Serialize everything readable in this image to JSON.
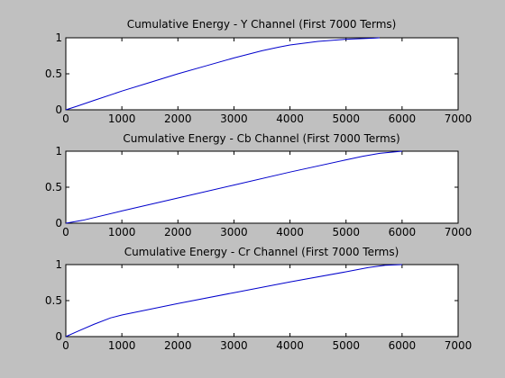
{
  "figure": {
    "background": "#c0c0c0",
    "axes_background": "#ffffff",
    "line_color": "#0000cc"
  },
  "chart_data": [
    {
      "type": "line",
      "title": "Cumulative Energy - Y Channel (First 7000 Terms)",
      "xlim": [
        0,
        7000
      ],
      "ylim": [
        0,
        1
      ],
      "xticks": [
        0,
        1000,
        2000,
        3000,
        4000,
        5000,
        6000,
        7000
      ],
      "yticks": [
        0,
        0.5,
        1
      ],
      "xlabel": "",
      "ylabel": "",
      "grid": false,
      "series": [
        {
          "name": "Y",
          "x": [
            0,
            200,
            500,
            1000,
            1500,
            2000,
            2500,
            3000,
            3500,
            3800,
            4000,
            4500,
            5000,
            5500,
            5600
          ],
          "y": [
            0,
            0.05,
            0.13,
            0.26,
            0.38,
            0.5,
            0.61,
            0.72,
            0.82,
            0.87,
            0.9,
            0.95,
            0.98,
            0.995,
            1.0
          ]
        }
      ]
    },
    {
      "type": "line",
      "title": "Cumulative Energy - Cb Channel (First 7000 Terms)",
      "xlim": [
        0,
        7000
      ],
      "ylim": [
        0,
        1
      ],
      "xticks": [
        0,
        1000,
        2000,
        3000,
        4000,
        5000,
        6000,
        7000
      ],
      "yticks": [
        0,
        0.5,
        1
      ],
      "xlabel": "",
      "ylabel": "",
      "grid": false,
      "series": [
        {
          "name": "Cb",
          "x": [
            0,
            300,
            1000,
            2000,
            3000,
            4000,
            5000,
            5300,
            5600,
            6000
          ],
          "y": [
            0,
            0.04,
            0.17,
            0.35,
            0.53,
            0.71,
            0.88,
            0.93,
            0.97,
            1.0
          ]
        }
      ]
    },
    {
      "type": "line",
      "title": "Cumulative Energy - Cr Channel (First 7000 Terms)",
      "xlim": [
        0,
        7000
      ],
      "ylim": [
        0,
        1
      ],
      "xticks": [
        0,
        1000,
        2000,
        3000,
        4000,
        5000,
        6000,
        7000
      ],
      "yticks": [
        0,
        0.5,
        1
      ],
      "xlabel": "",
      "ylabel": "",
      "grid": false,
      "series": [
        {
          "name": "Cr",
          "x": [
            0,
            200,
            500,
            800,
            1000,
            2000,
            3000,
            4000,
            5000,
            5400,
            5700,
            6000
          ],
          "y": [
            0,
            0.07,
            0.17,
            0.26,
            0.3,
            0.46,
            0.61,
            0.76,
            0.9,
            0.96,
            0.99,
            1.0
          ]
        }
      ]
    }
  ]
}
